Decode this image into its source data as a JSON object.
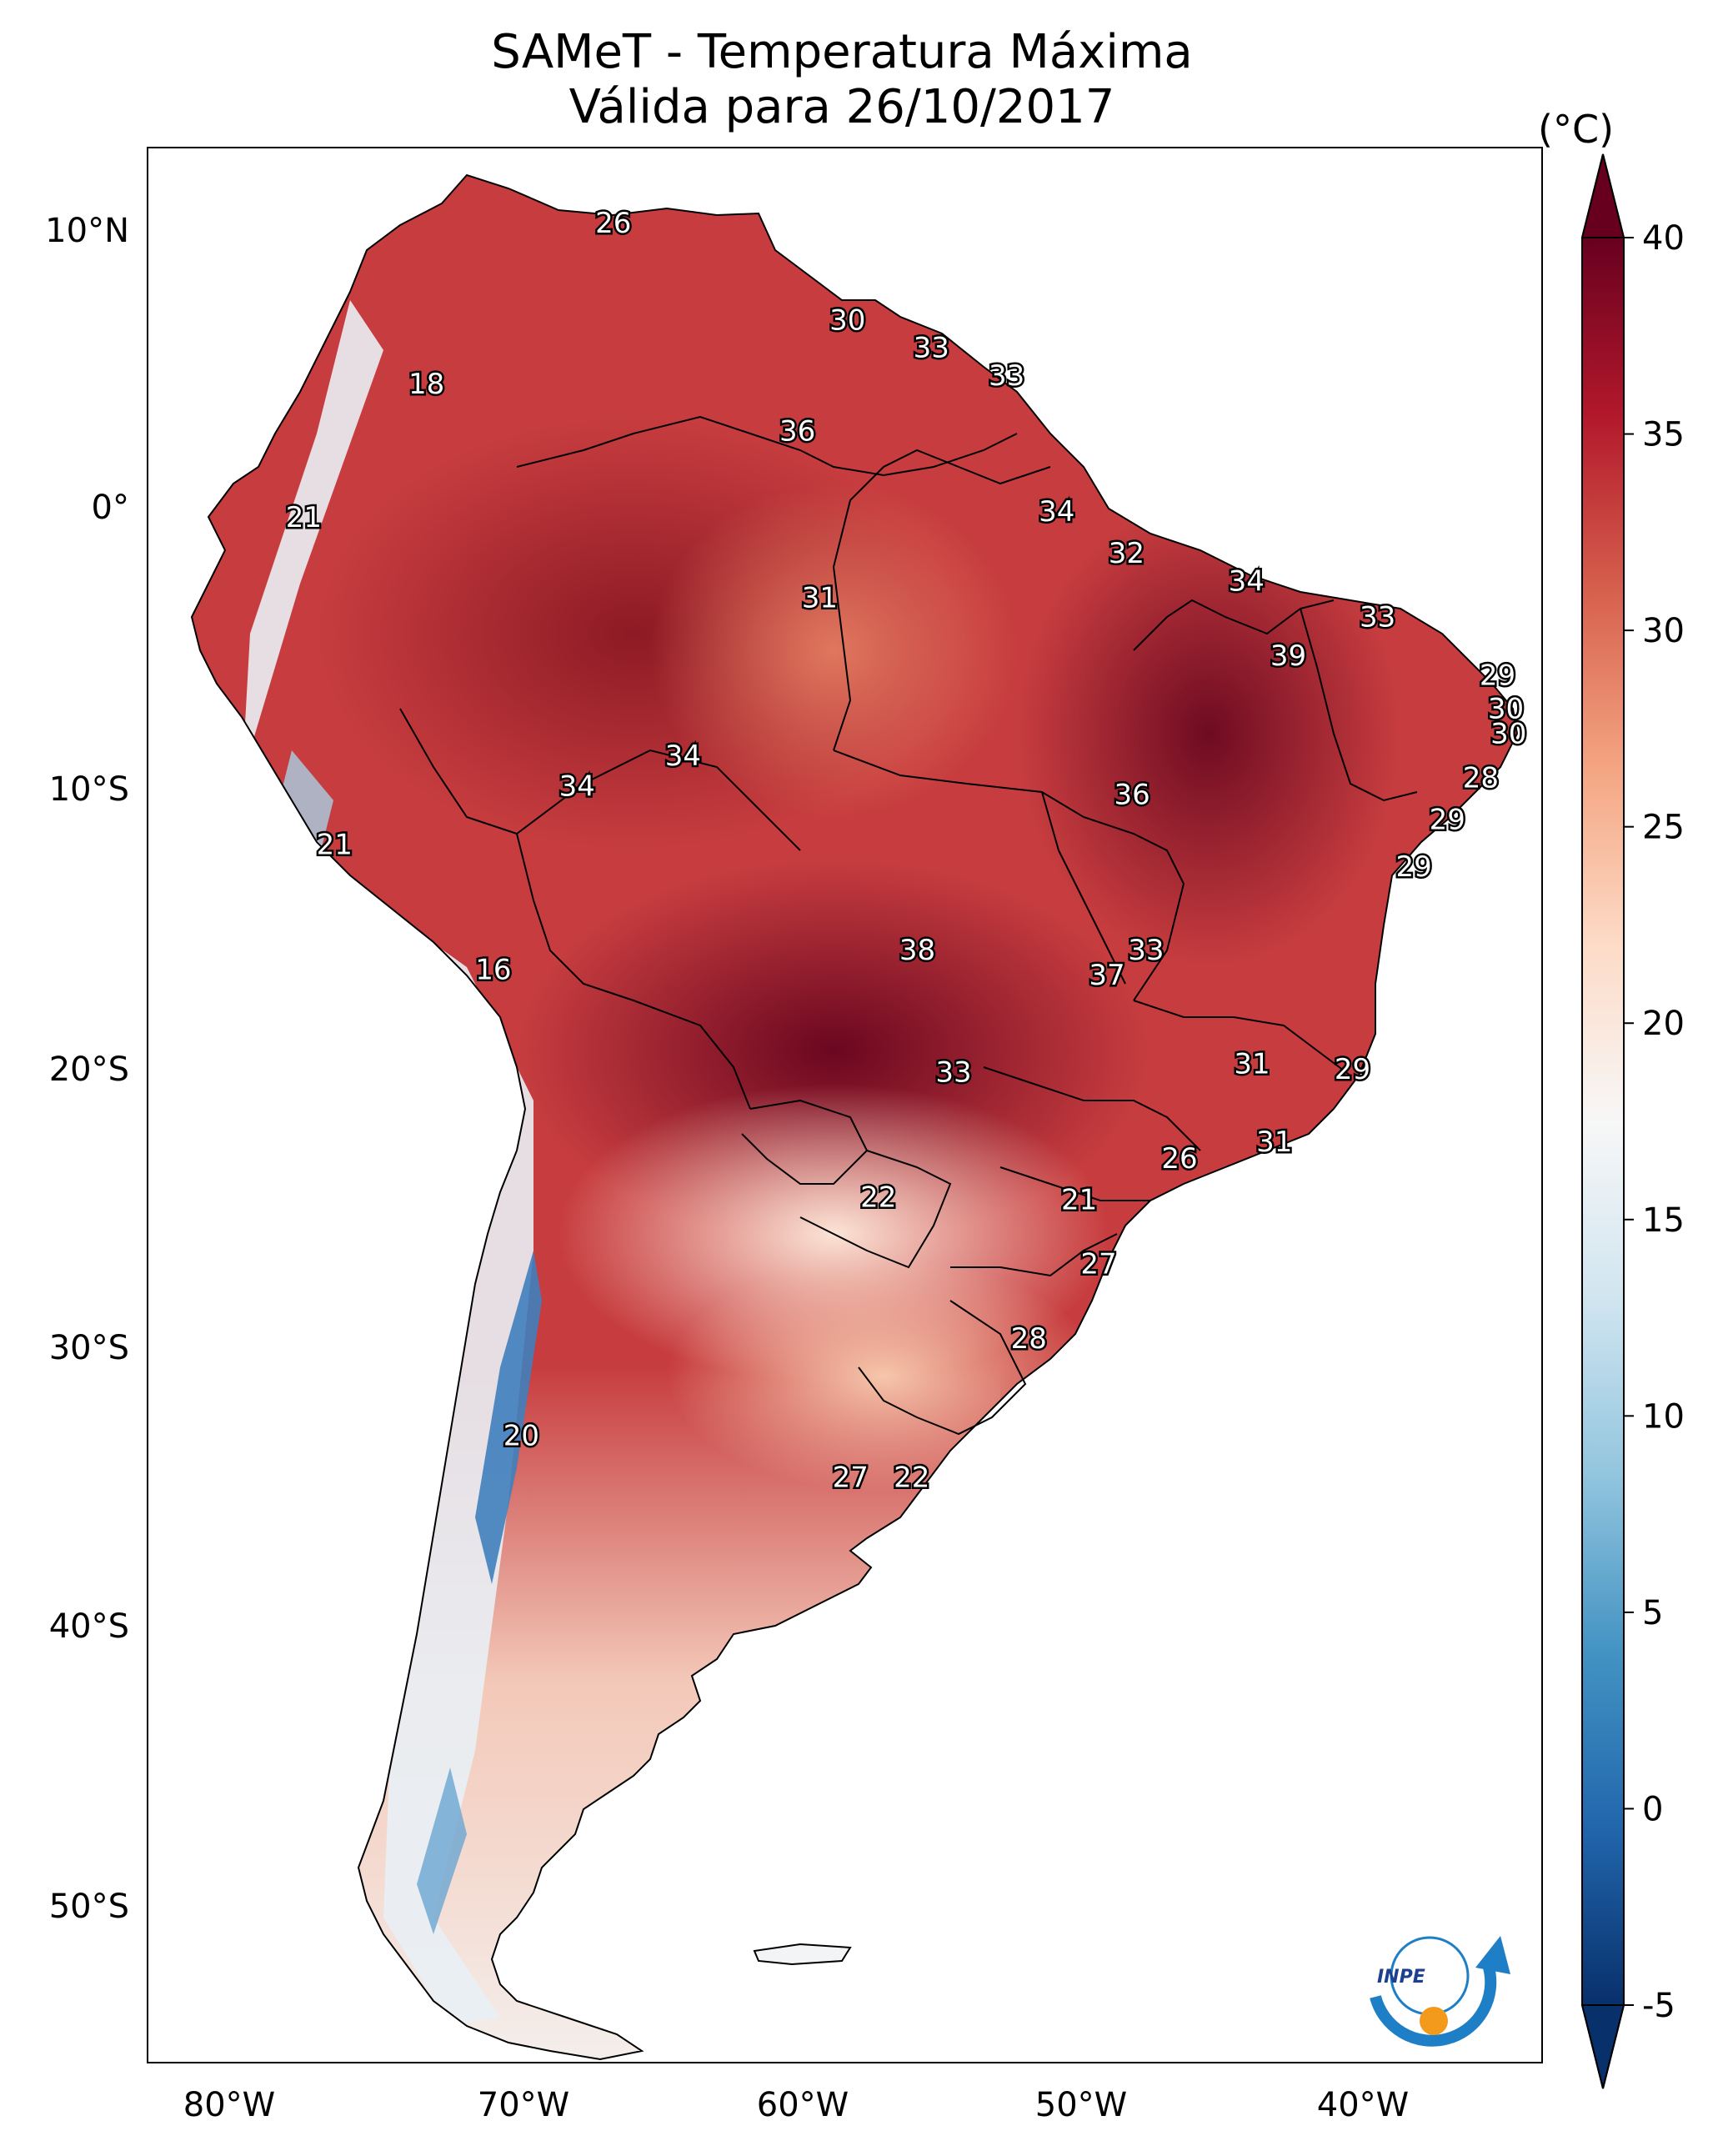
{
  "title": {
    "line1": "SAMeT - Temperatura Máxima",
    "line2": "Válida para 26/10/2017"
  },
  "colorbar": {
    "unit": "(°C)",
    "min": -5,
    "max": 40,
    "ticks": [
      "40",
      "35",
      "30",
      "25",
      "20",
      "15",
      "10",
      "5",
      "0",
      "-5"
    ],
    "extend": "both",
    "colormap": [
      "#08306b",
      "#2166ac",
      "#4393c3",
      "#92c5de",
      "#d1e5f0",
      "#f7f7f7",
      "#fddbc7",
      "#f4a582",
      "#d6604d",
      "#b2182b",
      "#67001f"
    ]
  },
  "axes": {
    "lon_labels": [
      "80°W",
      "70°W",
      "60°W",
      "50°W",
      "40°W"
    ],
    "lat_labels": [
      "10°N",
      "0°",
      "10°S",
      "20°S",
      "30°S",
      "40°S",
      "50°S"
    ],
    "lon_range": [
      -83,
      -33
    ],
    "lat_range": [
      -56,
      13
    ]
  },
  "contour_labels": [
    {
      "value": "26",
      "lon": -66.3,
      "lat": 10.3
    },
    {
      "value": "30",
      "lon": -57.9,
      "lat": 6.8
    },
    {
      "value": "33",
      "lon": -54.9,
      "lat": 5.8
    },
    {
      "value": "33",
      "lon": -52.2,
      "lat": 4.8
    },
    {
      "value": "18",
      "lon": -73.0,
      "lat": 4.5
    },
    {
      "value": "36",
      "lon": -59.7,
      "lat": 2.8
    },
    {
      "value": "21",
      "lon": -77.4,
      "lat": -0.3
    },
    {
      "value": "34",
      "lon": -50.4,
      "lat": -0.1
    },
    {
      "value": "32",
      "lon": -47.9,
      "lat": -1.6
    },
    {
      "value": "31",
      "lon": -58.9,
      "lat": -3.2
    },
    {
      "value": "34",
      "lon": -43.6,
      "lat": -2.6
    },
    {
      "value": "33",
      "lon": -38.9,
      "lat": -3.9
    },
    {
      "value": "39",
      "lon": -42.1,
      "lat": -5.3
    },
    {
      "value": "29",
      "lon": -34.6,
      "lat": -6.0
    },
    {
      "value": "30",
      "lon": -34.3,
      "lat": -7.2
    },
    {
      "value": "30",
      "lon": -34.2,
      "lat": -8.1
    },
    {
      "value": "34",
      "lon": -63.8,
      "lat": -8.9
    },
    {
      "value": "34",
      "lon": -67.6,
      "lat": -10.0
    },
    {
      "value": "36",
      "lon": -47.7,
      "lat": -10.3
    },
    {
      "value": "28",
      "lon": -35.2,
      "lat": -9.7
    },
    {
      "value": "29",
      "lon": -36.4,
      "lat": -11.2
    },
    {
      "value": "21",
      "lon": -76.3,
      "lat": -12.1
    },
    {
      "value": "29",
      "lon": -37.6,
      "lat": -12.9
    },
    {
      "value": "38",
      "lon": -55.4,
      "lat": -15.9
    },
    {
      "value": "33",
      "lon": -47.2,
      "lat": -15.9
    },
    {
      "value": "37",
      "lon": -48.6,
      "lat": -16.8
    },
    {
      "value": "16",
      "lon": -70.6,
      "lat": -16.6
    },
    {
      "value": "31",
      "lon": -43.4,
      "lat": -20.0
    },
    {
      "value": "29",
      "lon": -39.8,
      "lat": -20.2
    },
    {
      "value": "33",
      "lon": -54.1,
      "lat": -20.3
    },
    {
      "value": "31",
      "lon": -42.6,
      "lat": -22.8
    },
    {
      "value": "26",
      "lon": -46.0,
      "lat": -23.4
    },
    {
      "value": "22",
      "lon": -56.8,
      "lat": -24.8
    },
    {
      "value": "21",
      "lon": -49.6,
      "lat": -24.9
    },
    {
      "value": "27",
      "lon": -48.9,
      "lat": -27.2
    },
    {
      "value": "28",
      "lon": -51.4,
      "lat": -29.9
    },
    {
      "value": "20",
      "lon": -69.6,
      "lat": -33.4
    },
    {
      "value": "27",
      "lon": -57.8,
      "lat": -34.9
    },
    {
      "value": "22",
      "lon": -55.6,
      "lat": -34.9
    }
  ],
  "logo": {
    "text": "INPE"
  }
}
